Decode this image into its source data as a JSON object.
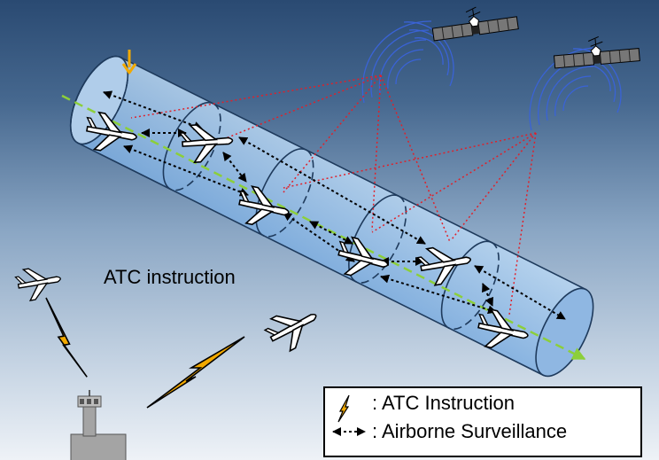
{
  "diagram": {
    "center_label": "ATC instruction",
    "legend": {
      "atc_label": ": ATC Instruction",
      "surveillance_label": ": Airborne Surveillance"
    }
  }
}
